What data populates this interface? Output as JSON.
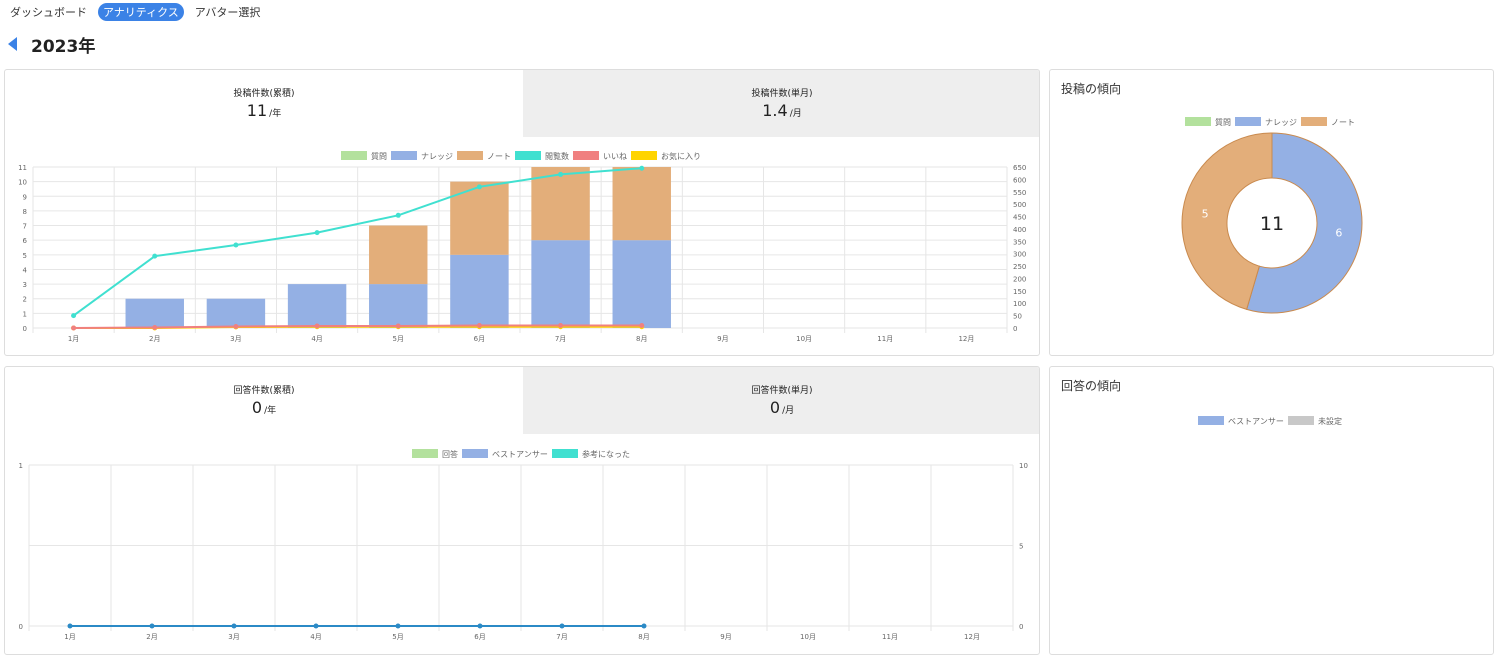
{
  "nav": {
    "tabs": [
      {
        "label": "ダッシュボード",
        "active": false
      },
      {
        "label": "アナリティクス",
        "active": true
      },
      {
        "label": "アバター選択",
        "active": false
      }
    ]
  },
  "year_title": "2023年",
  "posts": {
    "cumulative_label": "投稿件数(累積)",
    "cumulative_value": "11",
    "cumulative_unit": "/年",
    "monthly_label": "投稿件数(単月)",
    "monthly_value": "1.4",
    "monthly_unit": "/月"
  },
  "answers": {
    "cumulative_label": "回答件数(累積)",
    "cumulative_value": "0",
    "cumulative_unit": "/年",
    "monthly_label": "回答件数(単月)",
    "monthly_value": "0",
    "monthly_unit": "/月"
  },
  "post_trend_title": "投稿の傾向",
  "answer_trend_title": "回答の傾向",
  "colors": {
    "question": "#b3e19d",
    "knowledge": "#94b0e4",
    "note": "#e3ae7a",
    "views": "#40e0d0",
    "likes": "#f08080",
    "favorites": "#ffd400",
    "unset": "#c8c8c8",
    "answers_line": "#2b8ac6"
  },
  "chart_data": [
    {
      "type": "bar",
      "stacked": true,
      "categories": [
        "1月",
        "2月",
        "3月",
        "4月",
        "5月",
        "6月",
        "7月",
        "8月",
        "9月",
        "10月",
        "11月",
        "12月"
      ],
      "series": [
        {
          "name": "質問",
          "type": "bar",
          "color": "#b3e19d",
          "values": [
            0,
            0,
            0,
            0,
            0,
            0,
            0,
            0,
            null,
            null,
            null,
            null
          ]
        },
        {
          "name": "ナレッジ",
          "type": "bar",
          "color": "#94b0e4",
          "values": [
            0,
            2,
            2,
            3,
            3,
            5,
            6,
            6,
            null,
            null,
            null,
            null
          ]
        },
        {
          "name": "ノート",
          "type": "bar",
          "color": "#e3ae7a",
          "values": [
            0,
            0,
            0,
            0,
            4,
            5,
            5,
            5,
            null,
            null,
            null,
            null
          ]
        },
        {
          "name": "閲覧数",
          "type": "line",
          "axis": "right",
          "color": "#40e0d0",
          "values": [
            50,
            290,
            335,
            385,
            455,
            570,
            620,
            645,
            null,
            null,
            null,
            null
          ]
        },
        {
          "name": "いいね",
          "type": "line",
          "axis": "right",
          "color": "#f08080",
          "values": [
            0,
            2,
            6,
            8,
            8,
            10,
            10,
            10,
            null,
            null,
            null,
            null
          ]
        },
        {
          "name": "お気に入り",
          "type": "line",
          "axis": "right",
          "color": "#ffd400",
          "values": [
            0,
            0,
            4,
            5,
            5,
            5,
            5,
            5,
            null,
            null,
            null,
            null
          ]
        }
      ],
      "ylim": [
        0,
        11
      ],
      "yticks": [
        "0",
        "1",
        "2",
        "3",
        "4",
        "5",
        "6",
        "7",
        "8",
        "9",
        "10",
        "11"
      ],
      "y2lim": [
        0,
        650
      ],
      "y2ticks": [
        "0",
        "50",
        "100",
        "150",
        "200",
        "250",
        "300",
        "350",
        "400",
        "450",
        "500",
        "550",
        "600",
        "650"
      ],
      "legend": "top",
      "grid": true
    },
    {
      "type": "pie",
      "donut": true,
      "center_label": "11",
      "labels": [
        "質問",
        "ナレッジ",
        "ノート"
      ],
      "values": [
        0,
        6,
        5
      ],
      "value_labels": [
        "0",
        "6",
        "5"
      ],
      "colors": [
        "#b3e19d",
        "#94b0e4",
        "#e3ae7a"
      ],
      "legend": "top"
    },
    {
      "type": "line",
      "categories": [
        "1月",
        "2月",
        "3月",
        "4月",
        "5月",
        "6月",
        "7月",
        "8月",
        "9月",
        "10月",
        "11月",
        "12月"
      ],
      "series": [
        {
          "name": "回答",
          "type": "bar",
          "color": "#b3e19d",
          "values": [
            0,
            0,
            0,
            0,
            0,
            0,
            0,
            0,
            null,
            null,
            null,
            null
          ]
        },
        {
          "name": "ベストアンサー",
          "type": "bar",
          "color": "#94b0e4",
          "values": [
            0,
            0,
            0,
            0,
            0,
            0,
            0,
            0,
            null,
            null,
            null,
            null
          ]
        },
        {
          "name": "参考になった",
          "type": "line",
          "axis": "right",
          "color": "#40e0d0",
          "values": [
            0,
            0,
            0,
            0,
            0,
            0,
            0,
            0,
            null,
            null,
            null,
            null
          ]
        }
      ],
      "ylim": [
        0,
        1
      ],
      "yticks": [
        "0",
        "1"
      ],
      "y2lim": [
        0,
        10
      ],
      "y2ticks": [
        "0",
        "5",
        "10"
      ],
      "legend": "top",
      "grid": true
    },
    {
      "type": "pie",
      "donut": true,
      "labels": [
        "ベストアンサー",
        "未設定"
      ],
      "values": [
        0,
        0
      ],
      "colors": [
        "#94b0e4",
        "#c8c8c8"
      ],
      "legend": "top"
    }
  ]
}
